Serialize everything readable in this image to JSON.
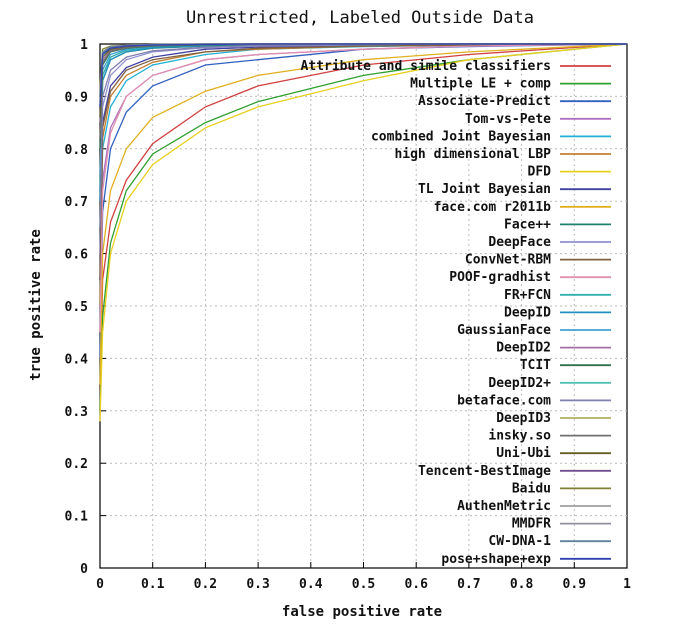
{
  "chart_data": {
    "type": "line",
    "title": "Unrestricted, Labeled Outside Data",
    "xlabel": "false positive rate",
    "ylabel": "true positive rate",
    "xlim": [
      0,
      1
    ],
    "ylim": [
      0,
      1
    ],
    "xticks": [
      "0",
      "0.1",
      "0.2",
      "0.3",
      "0.4",
      "0.5",
      "0.6",
      "0.7",
      "0.8",
      "0.9",
      "1"
    ],
    "yticks": [
      "0",
      "0.1",
      "0.2",
      "0.3",
      "0.4",
      "0.5",
      "0.6",
      "0.7",
      "0.8",
      "0.9",
      "1"
    ],
    "grid": true,
    "legend_position": "right",
    "series": [
      {
        "name": "Attribute and simile classifiers",
        "color": "#d04040",
        "x": [
          0,
          0.005,
          0.02,
          0.05,
          0.1,
          0.2,
          0.3,
          0.5,
          0.7,
          1
        ],
        "y": [
          0.3,
          0.55,
          0.66,
          0.74,
          0.81,
          0.88,
          0.92,
          0.96,
          0.98,
          1
        ]
      },
      {
        "name": "Multiple LE + comp",
        "color": "#30a030",
        "x": [
          0,
          0.005,
          0.02,
          0.05,
          0.1,
          0.2,
          0.3,
          0.5,
          0.7,
          1
        ],
        "y": [
          0.3,
          0.48,
          0.62,
          0.72,
          0.79,
          0.85,
          0.89,
          0.94,
          0.97,
          1
        ]
      },
      {
        "name": "Associate-Predict",
        "color": "#3060c0",
        "x": [
          0,
          0.005,
          0.02,
          0.05,
          0.1,
          0.2,
          0.3,
          0.5,
          0.7,
          1
        ],
        "y": [
          0.4,
          0.68,
          0.8,
          0.87,
          0.92,
          0.96,
          0.97,
          0.99,
          0.995,
          1
        ]
      },
      {
        "name": "Tom-vs-Pete",
        "color": "#b070c0",
        "x": [
          0,
          0.005,
          0.02,
          0.05,
          0.1,
          0.2,
          0.3,
          0.5,
          0.7,
          1
        ],
        "y": [
          0.45,
          0.74,
          0.84,
          0.9,
          0.94,
          0.97,
          0.98,
          0.99,
          0.997,
          1
        ]
      },
      {
        "name": "combined Joint Bayesian",
        "color": "#20b0d8",
        "x": [
          0,
          0.005,
          0.02,
          0.05,
          0.1,
          0.2,
          0.3,
          0.5,
          0.7,
          1
        ],
        "y": [
          0.5,
          0.8,
          0.88,
          0.93,
          0.96,
          0.98,
          0.99,
          0.995,
          0.998,
          1
        ]
      },
      {
        "name": "high dimensional LBP",
        "color": "#c08030",
        "x": [
          0,
          0.005,
          0.02,
          0.05,
          0.1,
          0.2,
          0.3,
          0.5,
          0.7,
          1
        ],
        "y": [
          0.5,
          0.82,
          0.9,
          0.94,
          0.965,
          0.985,
          0.99,
          0.996,
          0.998,
          1
        ]
      },
      {
        "name": "DFD",
        "color": "#e8d020",
        "x": [
          0,
          0.005,
          0.02,
          0.05,
          0.1,
          0.2,
          0.3,
          0.5,
          0.7,
          1
        ],
        "y": [
          0.28,
          0.45,
          0.6,
          0.7,
          0.77,
          0.84,
          0.88,
          0.93,
          0.97,
          1
        ]
      },
      {
        "name": "TL Joint Bayesian",
        "color": "#4040a0",
        "x": [
          0,
          0.005,
          0.02,
          0.05,
          0.1,
          0.2,
          0.3,
          0.5,
          0.7,
          1
        ],
        "y": [
          0.55,
          0.85,
          0.92,
          0.955,
          0.975,
          0.99,
          0.994,
          0.997,
          0.999,
          1
        ]
      },
      {
        "name": "face.com r2011b",
        "color": "#e0b020",
        "x": [
          0,
          0.005,
          0.02,
          0.05,
          0.1,
          0.2,
          0.3,
          0.5,
          0.7,
          1
        ],
        "y": [
          0.35,
          0.6,
          0.72,
          0.8,
          0.86,
          0.91,
          0.94,
          0.97,
          0.985,
          1
        ]
      },
      {
        "name": "Face++",
        "color": "#208070",
        "x": [
          0,
          0.005,
          0.02,
          0.05,
          0.1,
          0.2,
          0.3,
          0.5,
          0.7,
          1
        ],
        "y": [
          0.7,
          0.93,
          0.97,
          0.985,
          0.992,
          0.996,
          0.998,
          0.999,
          1,
          1
        ]
      },
      {
        "name": "DeepFace",
        "color": "#9090d0",
        "x": [
          0,
          0.005,
          0.02,
          0.05,
          0.1,
          0.2,
          0.3,
          0.5,
          0.7,
          1
        ],
        "y": [
          0.6,
          0.88,
          0.94,
          0.97,
          0.985,
          0.993,
          0.996,
          0.998,
          0.999,
          1
        ]
      },
      {
        "name": "ConvNet-RBM",
        "color": "#806040",
        "x": [
          0,
          0.005,
          0.02,
          0.05,
          0.1,
          0.2,
          0.3,
          0.5,
          0.7,
          1
        ],
        "y": [
          0.55,
          0.84,
          0.91,
          0.95,
          0.97,
          0.985,
          0.992,
          0.996,
          0.998,
          1
        ]
      },
      {
        "name": "POOF-gradhist",
        "color": "#e090b0",
        "x": [
          0,
          0.005,
          0.02,
          0.05,
          0.1,
          0.2,
          0.3,
          0.5,
          0.7,
          1
        ],
        "y": [
          0.45,
          0.72,
          0.83,
          0.9,
          0.94,
          0.97,
          0.98,
          0.99,
          0.996,
          1
        ]
      },
      {
        "name": "FR+FCN",
        "color": "#30b0b0",
        "x": [
          0,
          0.005,
          0.02,
          0.05,
          0.1,
          0.2,
          0.3,
          0.5,
          0.7,
          1
        ],
        "y": [
          0.72,
          0.94,
          0.975,
          0.988,
          0.994,
          0.997,
          0.998,
          0.999,
          1,
          1
        ]
      },
      {
        "name": "DeepID",
        "color": "#2090c0",
        "x": [
          0,
          0.005,
          0.02,
          0.05,
          0.1,
          0.2,
          0.3,
          0.5,
          0.7,
          1
        ],
        "y": [
          0.7,
          0.93,
          0.97,
          0.985,
          0.993,
          0.997,
          0.998,
          0.999,
          1,
          1
        ]
      },
      {
        "name": "GaussianFace",
        "color": "#40a0d0",
        "x": [
          0,
          0.005,
          0.02,
          0.05,
          0.1,
          0.2,
          0.3,
          0.5,
          0.7,
          1
        ],
        "y": [
          0.75,
          0.95,
          0.98,
          0.99,
          0.995,
          0.998,
          0.999,
          1,
          1,
          1
        ]
      },
      {
        "name": "DeepID2",
        "color": "#a070a0",
        "x": [
          0,
          0.005,
          0.02,
          0.05,
          0.1,
          0.2,
          0.3,
          0.5,
          0.7,
          1
        ],
        "y": [
          0.85,
          0.97,
          0.988,
          0.994,
          0.997,
          0.999,
          1,
          1,
          1,
          1
        ]
      },
      {
        "name": "TCIT",
        "color": "#307050",
        "x": [
          0,
          0.005,
          0.02,
          0.05,
          0.1,
          0.2,
          0.3,
          0.5,
          0.7,
          1
        ],
        "y": [
          0.8,
          0.96,
          0.985,
          0.992,
          0.996,
          0.998,
          0.999,
          1,
          1,
          1
        ]
      },
      {
        "name": "DeepID2+",
        "color": "#50c0b0",
        "x": [
          0,
          0.005,
          0.02,
          0.05,
          0.1,
          0.2,
          0.3,
          0.5,
          0.7,
          1
        ],
        "y": [
          0.88,
          0.98,
          0.992,
          0.996,
          0.998,
          0.999,
          1,
          1,
          1,
          1
        ]
      },
      {
        "name": "betaface.com",
        "color": "#8080b0",
        "x": [
          0,
          0.005,
          0.02,
          0.05,
          0.1,
          0.2,
          0.3,
          0.5,
          0.7,
          1
        ],
        "y": [
          0.65,
          0.9,
          0.95,
          0.975,
          0.987,
          0.994,
          0.997,
          0.999,
          1,
          1
        ]
      },
      {
        "name": "DeepID3",
        "color": "#b0b060",
        "x": [
          0,
          0.005,
          0.02,
          0.05,
          0.1,
          0.2,
          0.3,
          0.5,
          0.7,
          1
        ],
        "y": [
          0.9,
          0.985,
          0.994,
          0.997,
          0.999,
          1,
          1,
          1,
          1,
          1
        ]
      },
      {
        "name": "insky.so",
        "color": "#707070",
        "x": [
          0,
          0.005,
          0.02,
          0.05,
          0.1,
          0.2,
          0.3,
          0.5,
          0.7,
          1
        ],
        "y": [
          0.82,
          0.965,
          0.986,
          0.993,
          0.997,
          0.999,
          1,
          1,
          1,
          1
        ]
      },
      {
        "name": "Uni-Ubi",
        "color": "#606020",
        "x": [
          0,
          0.005,
          0.02,
          0.05,
          0.1,
          0.2,
          0.3,
          0.5,
          0.7,
          1
        ],
        "y": [
          0.86,
          0.975,
          0.99,
          0.995,
          0.998,
          0.999,
          1,
          1,
          1,
          1
        ]
      },
      {
        "name": "Tencent-BestImage",
        "color": "#705090",
        "x": [
          0,
          0.005,
          0.02,
          0.05,
          0.1,
          0.2,
          0.3,
          0.5,
          0.7,
          1
        ],
        "y": [
          0.9,
          0.982,
          0.993,
          0.997,
          0.999,
          1,
          1,
          1,
          1,
          1
        ]
      },
      {
        "name": "Baidu",
        "color": "#808030",
        "x": [
          0,
          0.005,
          0.02,
          0.05,
          0.1,
          0.2,
          0.3,
          0.5,
          0.7,
          1
        ],
        "y": [
          0.92,
          0.99,
          0.996,
          0.998,
          0.999,
          1,
          1,
          1,
          1,
          1
        ]
      },
      {
        "name": "AuthenMetric",
        "color": "#a0a0a0",
        "x": [
          0,
          0.005,
          0.02,
          0.05,
          0.1,
          0.2,
          0.3,
          0.5,
          0.7,
          1
        ],
        "y": [
          0.89,
          0.98,
          0.992,
          0.996,
          0.998,
          0.999,
          1,
          1,
          1,
          1
        ]
      },
      {
        "name": "MMDFR",
        "color": "#9090a0",
        "x": [
          0,
          0.005,
          0.02,
          0.05,
          0.1,
          0.2,
          0.3,
          0.5,
          0.7,
          1
        ],
        "y": [
          0.91,
          0.985,
          0.995,
          0.998,
          0.999,
          1,
          1,
          1,
          1,
          1
        ]
      },
      {
        "name": "CW-DNA-1",
        "color": "#6080a0",
        "x": [
          0,
          0.005,
          0.02,
          0.05,
          0.1,
          0.2,
          0.3,
          0.5,
          0.7,
          1
        ],
        "y": [
          0.9,
          0.984,
          0.994,
          0.997,
          0.999,
          1,
          1,
          1,
          1,
          1
        ]
      },
      {
        "name": "pose+shape+exp",
        "color": "#3040b0",
        "x": [
          0,
          0.005,
          0.02,
          0.05,
          0.1,
          0.2,
          0.3,
          0.5,
          0.7,
          1
        ],
        "y": [
          0.88,
          0.98,
          0.992,
          0.996,
          0.998,
          0.999,
          1,
          1,
          1,
          1
        ]
      }
    ]
  }
}
